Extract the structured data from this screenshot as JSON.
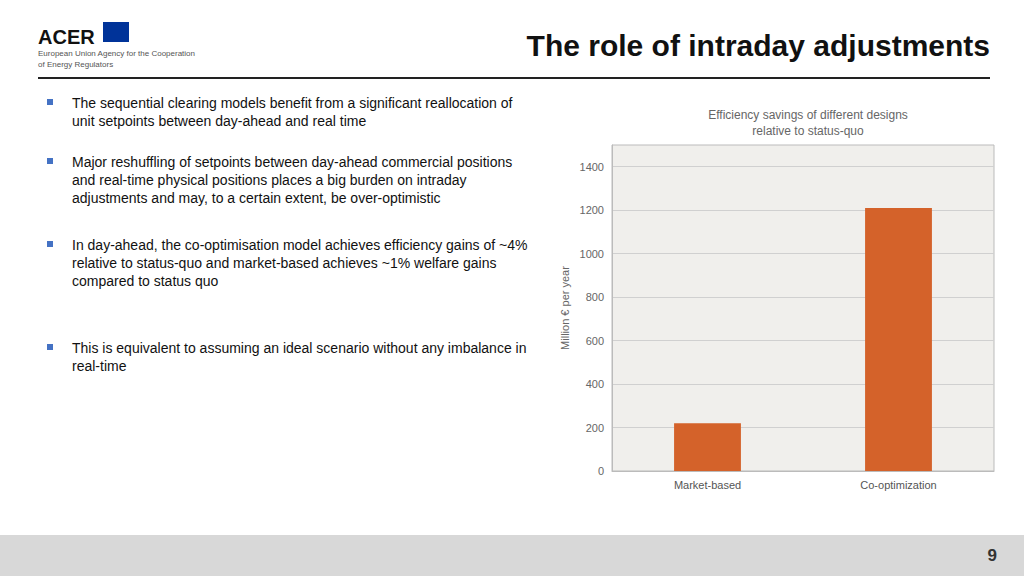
{
  "chart_data": {
    "type": "bar",
    "title": "Efficiency savings of different designs\nrelative to status-quo",
    "categories": [
      "Market-based",
      "Co-optimization"
    ],
    "values": [
      220,
      1210
    ],
    "color": "#d4622a",
    "ylabel": "Million € per year",
    "ylim": [
      0,
      1500
    ],
    "yticks": [
      0,
      200,
      400,
      600,
      800,
      1000,
      1200,
      1400
    ],
    "grid": true,
    "annotations": [
      "ACER",
      "European Union Agency for the Cooperation\nof Energy Regulators",
      "The role of intraday adjustments",
      "The sequential clearing models benefit from a significant reallocation of unit setpoints between day-ahead and real time",
      "Major reshuffling of setpoints between day-ahead commercial positions and real-time physical positions places a big burden on intraday adjustments and may, to a certain extent, be over-optimistic",
      "In day-ahead, the co-optimisation model achieves efficiency gains of ~4% relative to status-quo and market-based achieves ~1% welfare gains compared to status quo",
      "This is equivalent to assuming an ideal scenario without any imbalance in real-time",
      "9"
    ]
  }
}
